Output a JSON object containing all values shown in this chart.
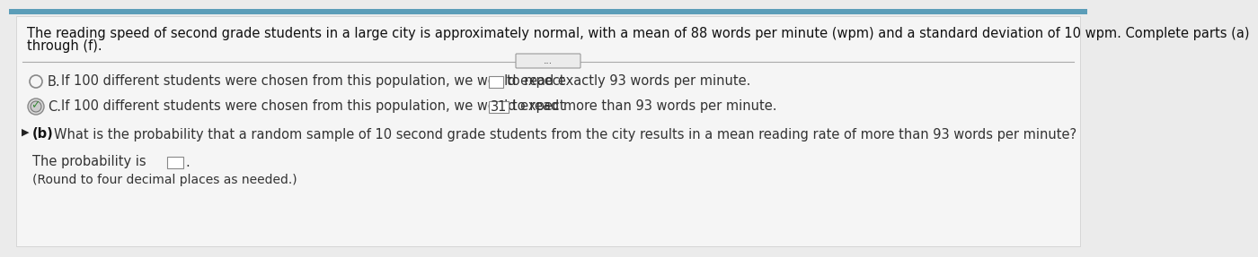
{
  "bg_color": "#ebebeb",
  "top_bar_color": "#5b9db8",
  "header_line1": "The reading speed of second grade students in a large city is approximately normal, with a mean of 88 words per minute (wpm) and a standard deviation of 10 wpm. Complete parts (a)",
  "header_line2": "through (f).",
  "divider_ellipsis": "...",
  "option_B_text": "If 100 different students were chosen from this population, we would expect",
  "option_B_text2": "to read exactly 93 words per minute.",
  "option_C_text": "If 100 different students were chosen from this population, we would expect",
  "option_C_number": "31",
  "option_C_text2": "to read more than 93 words per minute.",
  "part_b_text": "What is the probability that a random sample of 10 second grade students from the city results in a mean reading rate of more than 93 words per minute?",
  "prob_label": "The probability is",
  "prob_note": "(Round to four decimal places as needed.)",
  "font_size": 10.5,
  "font_size_small": 10.0
}
